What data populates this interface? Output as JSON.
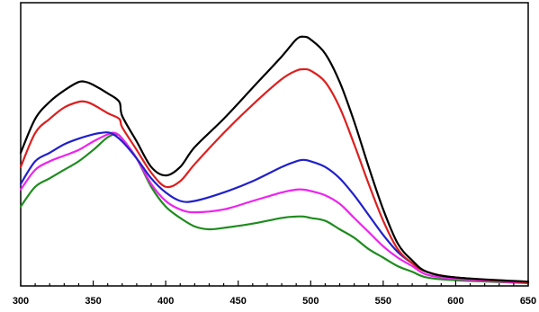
{
  "chart_data": {
    "type": "line",
    "title": "",
    "xlabel": "",
    "ylabel": "",
    "xlim": [
      300,
      650
    ],
    "ylim": [
      0,
      1.0
    ],
    "grid": false,
    "legend": "none",
    "x_ticks": [
      "300",
      "350",
      "400",
      "450",
      "500",
      "550",
      "600",
      "650"
    ],
    "series": [
      {
        "color": "#000000",
        "points": [
          [
            300,
            0.47
          ],
          [
            310,
            0.59
          ],
          [
            320,
            0.65
          ],
          [
            330,
            0.69
          ],
          [
            340,
            0.72
          ],
          [
            345,
            0.72
          ],
          [
            350,
            0.71
          ],
          [
            360,
            0.68
          ],
          [
            368,
            0.65
          ],
          [
            370,
            0.6
          ],
          [
            380,
            0.51
          ],
          [
            390,
            0.42
          ],
          [
            400,
            0.39
          ],
          [
            410,
            0.42
          ],
          [
            420,
            0.49
          ],
          [
            440,
            0.59
          ],
          [
            460,
            0.7
          ],
          [
            480,
            0.81
          ],
          [
            490,
            0.87
          ],
          [
            495,
            0.88
          ],
          [
            500,
            0.87
          ],
          [
            510,
            0.82
          ],
          [
            520,
            0.72
          ],
          [
            530,
            0.58
          ],
          [
            540,
            0.42
          ],
          [
            550,
            0.27
          ],
          [
            560,
            0.15
          ],
          [
            570,
            0.09
          ],
          [
            580,
            0.05
          ],
          [
            600,
            0.03
          ],
          [
            650,
            0.015
          ]
        ]
      },
      {
        "color": "#dd1f1f",
        "points": [
          [
            300,
            0.42
          ],
          [
            310,
            0.54
          ],
          [
            320,
            0.59
          ],
          [
            330,
            0.63
          ],
          [
            340,
            0.65
          ],
          [
            345,
            0.65
          ],
          [
            350,
            0.64
          ],
          [
            360,
            0.61
          ],
          [
            368,
            0.59
          ],
          [
            370,
            0.56
          ],
          [
            380,
            0.48
          ],
          [
            390,
            0.4
          ],
          [
            400,
            0.35
          ],
          [
            410,
            0.37
          ],
          [
            420,
            0.43
          ],
          [
            440,
            0.54
          ],
          [
            460,
            0.64
          ],
          [
            480,
            0.73
          ],
          [
            490,
            0.76
          ],
          [
            495,
            0.765
          ],
          [
            500,
            0.76
          ],
          [
            510,
            0.72
          ],
          [
            520,
            0.63
          ],
          [
            530,
            0.5
          ],
          [
            540,
            0.36
          ],
          [
            550,
            0.23
          ],
          [
            560,
            0.13
          ],
          [
            570,
            0.08
          ],
          [
            580,
            0.05
          ],
          [
            600,
            0.03
          ],
          [
            650,
            0.012
          ]
        ]
      },
      {
        "color": "#2020cc",
        "points": [
          [
            300,
            0.36
          ],
          [
            310,
            0.44
          ],
          [
            320,
            0.47
          ],
          [
            330,
            0.5
          ],
          [
            340,
            0.52
          ],
          [
            350,
            0.535
          ],
          [
            355,
            0.54
          ],
          [
            362,
            0.54
          ],
          [
            370,
            0.51
          ],
          [
            380,
            0.45
          ],
          [
            390,
            0.38
          ],
          [
            400,
            0.33
          ],
          [
            410,
            0.3
          ],
          [
            420,
            0.3
          ],
          [
            440,
            0.33
          ],
          [
            460,
            0.37
          ],
          [
            480,
            0.42
          ],
          [
            490,
            0.44
          ],
          [
            495,
            0.445
          ],
          [
            500,
            0.44
          ],
          [
            510,
            0.42
          ],
          [
            520,
            0.38
          ],
          [
            530,
            0.32
          ],
          [
            540,
            0.25
          ],
          [
            550,
            0.18
          ],
          [
            560,
            0.12
          ],
          [
            570,
            0.08
          ],
          [
            580,
            0.05
          ],
          [
            600,
            0.03
          ],
          [
            650,
            0.012
          ]
        ]
      },
      {
        "color": "#ee22ee",
        "points": [
          [
            300,
            0.34
          ],
          [
            310,
            0.41
          ],
          [
            320,
            0.44
          ],
          [
            330,
            0.46
          ],
          [
            340,
            0.48
          ],
          [
            350,
            0.51
          ],
          [
            360,
            0.535
          ],
          [
            365,
            0.54
          ],
          [
            370,
            0.52
          ],
          [
            380,
            0.45
          ],
          [
            390,
            0.36
          ],
          [
            400,
            0.3
          ],
          [
            410,
            0.27
          ],
          [
            420,
            0.26
          ],
          [
            440,
            0.27
          ],
          [
            460,
            0.3
          ],
          [
            480,
            0.33
          ],
          [
            490,
            0.34
          ],
          [
            495,
            0.34
          ],
          [
            500,
            0.335
          ],
          [
            510,
            0.32
          ],
          [
            520,
            0.29
          ],
          [
            530,
            0.24
          ],
          [
            540,
            0.19
          ],
          [
            550,
            0.14
          ],
          [
            560,
            0.1
          ],
          [
            570,
            0.07
          ],
          [
            580,
            0.04
          ],
          [
            600,
            0.025
          ],
          [
            650,
            0.01
          ]
        ]
      },
      {
        "color": "#1e8c1e",
        "points": [
          [
            300,
            0.28
          ],
          [
            310,
            0.35
          ],
          [
            320,
            0.38
          ],
          [
            330,
            0.41
          ],
          [
            340,
            0.44
          ],
          [
            350,
            0.48
          ],
          [
            360,
            0.525
          ],
          [
            366,
            0.535
          ],
          [
            370,
            0.52
          ],
          [
            380,
            0.45
          ],
          [
            390,
            0.35
          ],
          [
            400,
            0.28
          ],
          [
            410,
            0.24
          ],
          [
            420,
            0.21
          ],
          [
            430,
            0.2
          ],
          [
            440,
            0.205
          ],
          [
            460,
            0.22
          ],
          [
            480,
            0.24
          ],
          [
            490,
            0.245
          ],
          [
            495,
            0.245
          ],
          [
            500,
            0.24
          ],
          [
            510,
            0.23
          ],
          [
            520,
            0.2
          ],
          [
            530,
            0.17
          ],
          [
            540,
            0.13
          ],
          [
            550,
            0.1
          ],
          [
            560,
            0.07
          ],
          [
            570,
            0.05
          ],
          [
            580,
            0.03
          ],
          [
            600,
            0.02
          ],
          [
            650,
            0.01
          ]
        ]
      }
    ]
  }
}
